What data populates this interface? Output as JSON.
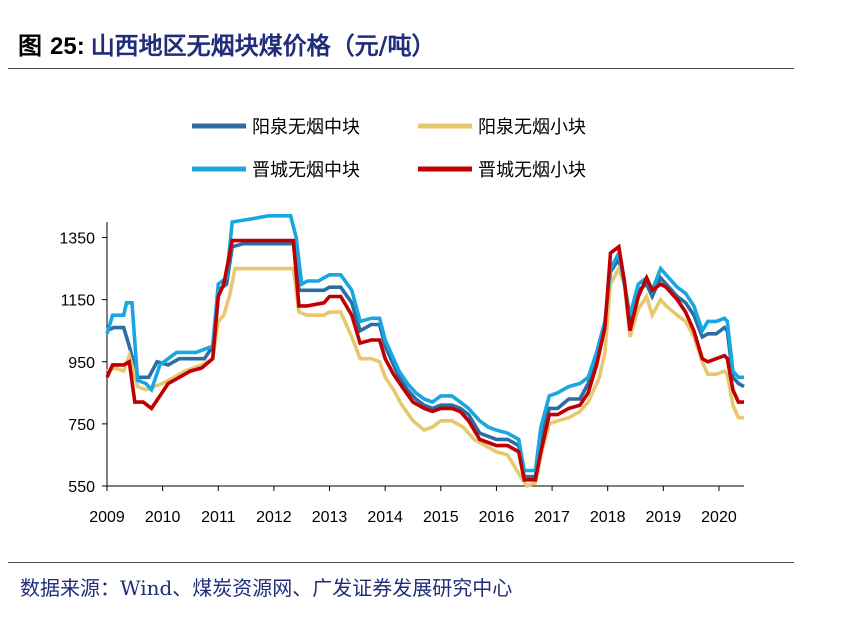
{
  "title": {
    "label": "图",
    "number": "25:",
    "text": "山西地区无烟块煤价格（元/吨）"
  },
  "source": "数据来源：Wind、煤炭资源网、广发证券发展研究中心",
  "chart_data": {
    "type": "line",
    "title": "山西地区无烟块煤价格（元/吨）",
    "xlabel": "",
    "ylabel": "",
    "xlim": [
      2009.0,
      2020.45
    ],
    "ylim": [
      550,
      1400
    ],
    "yticks": [
      550,
      750,
      950,
      1150,
      1350
    ],
    "xticks": [
      "2009",
      "2010",
      "2011",
      "2012",
      "2013",
      "2014",
      "2015",
      "2016",
      "2017",
      "2018",
      "2019",
      "2020"
    ],
    "grid": false,
    "legend_position": "top",
    "series": [
      {
        "name": "阳泉无烟中块",
        "color": "#2e6da4",
        "points": [
          [
            2009.0,
            1050
          ],
          [
            2009.12,
            1060
          ],
          [
            2009.3,
            1060
          ],
          [
            2009.4,
            1000
          ],
          [
            2009.55,
            900
          ],
          [
            2009.75,
            900
          ],
          [
            2009.9,
            950
          ],
          [
            2010.1,
            940
          ],
          [
            2010.3,
            960
          ],
          [
            2010.5,
            960
          ],
          [
            2010.75,
            960
          ],
          [
            2010.9,
            1000
          ],
          [
            2011.0,
            1180
          ],
          [
            2011.15,
            1200
          ],
          [
            2011.25,
            1320
          ],
          [
            2011.45,
            1330
          ],
          [
            2011.75,
            1330
          ],
          [
            2012.0,
            1330
          ],
          [
            2012.35,
            1330
          ],
          [
            2012.45,
            1180
          ],
          [
            2012.6,
            1180
          ],
          [
            2012.9,
            1180
          ],
          [
            2013.0,
            1190
          ],
          [
            2013.2,
            1190
          ],
          [
            2013.4,
            1140
          ],
          [
            2013.55,
            1050
          ],
          [
            2013.75,
            1070
          ],
          [
            2013.9,
            1070
          ],
          [
            2014.0,
            1000
          ],
          [
            2014.1,
            960
          ],
          [
            2014.25,
            900
          ],
          [
            2014.4,
            860
          ],
          [
            2014.55,
            830
          ],
          [
            2014.7,
            810
          ],
          [
            2014.85,
            800
          ],
          [
            2015.0,
            810
          ],
          [
            2015.2,
            810
          ],
          [
            2015.35,
            800
          ],
          [
            2015.5,
            780
          ],
          [
            2015.7,
            720
          ],
          [
            2015.85,
            710
          ],
          [
            2016.0,
            700
          ],
          [
            2016.2,
            700
          ],
          [
            2016.4,
            680
          ],
          [
            2016.5,
            580
          ],
          [
            2016.7,
            580
          ],
          [
            2016.8,
            700
          ],
          [
            2016.95,
            800
          ],
          [
            2017.1,
            800
          ],
          [
            2017.3,
            830
          ],
          [
            2017.5,
            830
          ],
          [
            2017.65,
            880
          ],
          [
            2017.8,
            960
          ],
          [
            2017.95,
            1050
          ],
          [
            2018.05,
            1240
          ],
          [
            2018.2,
            1280
          ],
          [
            2018.3,
            1200
          ],
          [
            2018.4,
            1080
          ],
          [
            2018.55,
            1180
          ],
          [
            2018.7,
            1200
          ],
          [
            2018.8,
            1160
          ],
          [
            2018.95,
            1220
          ],
          [
            2019.05,
            1200
          ],
          [
            2019.25,
            1160
          ],
          [
            2019.4,
            1140
          ],
          [
            2019.55,
            1100
          ],
          [
            2019.7,
            1030
          ],
          [
            2019.8,
            1040
          ],
          [
            2019.95,
            1040
          ],
          [
            2020.1,
            1060
          ],
          [
            2020.15,
            1050
          ],
          [
            2020.25,
            900
          ],
          [
            2020.35,
            880
          ],
          [
            2020.45,
            870
          ]
        ]
      },
      {
        "name": "阳泉无烟小块",
        "color": "#e8c86e",
        "points": [
          [
            2009.0,
            920
          ],
          [
            2009.15,
            930
          ],
          [
            2009.3,
            920
          ],
          [
            2009.4,
            970
          ],
          [
            2009.55,
            870
          ],
          [
            2009.7,
            860
          ],
          [
            2009.85,
            870
          ],
          [
            2010.0,
            880
          ],
          [
            2010.2,
            900
          ],
          [
            2010.4,
            920
          ],
          [
            2010.7,
            940
          ],
          [
            2010.9,
            960
          ],
          [
            2011.0,
            1080
          ],
          [
            2011.1,
            1100
          ],
          [
            2011.2,
            1160
          ],
          [
            2011.3,
            1250
          ],
          [
            2011.6,
            1250
          ],
          [
            2012.0,
            1250
          ],
          [
            2012.35,
            1250
          ],
          [
            2012.45,
            1110
          ],
          [
            2012.6,
            1100
          ],
          [
            2012.9,
            1100
          ],
          [
            2013.0,
            1110
          ],
          [
            2013.2,
            1110
          ],
          [
            2013.4,
            1030
          ],
          [
            2013.55,
            960
          ],
          [
            2013.75,
            960
          ],
          [
            2013.9,
            950
          ],
          [
            2014.0,
            900
          ],
          [
            2014.15,
            860
          ],
          [
            2014.3,
            810
          ],
          [
            2014.5,
            760
          ],
          [
            2014.7,
            730
          ],
          [
            2014.85,
            740
          ],
          [
            2015.0,
            760
          ],
          [
            2015.2,
            760
          ],
          [
            2015.4,
            740
          ],
          [
            2015.6,
            700
          ],
          [
            2015.8,
            680
          ],
          [
            2016.0,
            660
          ],
          [
            2016.2,
            650
          ],
          [
            2016.4,
            590
          ],
          [
            2016.55,
            550
          ],
          [
            2016.7,
            560
          ],
          [
            2016.8,
            650
          ],
          [
            2016.95,
            750
          ],
          [
            2017.1,
            760
          ],
          [
            2017.3,
            770
          ],
          [
            2017.5,
            790
          ],
          [
            2017.65,
            820
          ],
          [
            2017.85,
            900
          ],
          [
            2017.95,
            980
          ],
          [
            2018.05,
            1200
          ],
          [
            2018.2,
            1250
          ],
          [
            2018.3,
            1200
          ],
          [
            2018.4,
            1030
          ],
          [
            2018.55,
            1120
          ],
          [
            2018.7,
            1160
          ],
          [
            2018.8,
            1100
          ],
          [
            2018.95,
            1150
          ],
          [
            2019.05,
            1130
          ],
          [
            2019.25,
            1100
          ],
          [
            2019.4,
            1080
          ],
          [
            2019.55,
            1030
          ],
          [
            2019.7,
            950
          ],
          [
            2019.8,
            910
          ],
          [
            2019.95,
            910
          ],
          [
            2020.1,
            920
          ],
          [
            2020.15,
            910
          ],
          [
            2020.25,
            810
          ],
          [
            2020.35,
            770
          ],
          [
            2020.45,
            770
          ]
        ]
      },
      {
        "name": "晋城无烟中块",
        "color": "#19a7e2",
        "points": [
          [
            2009.0,
            1040
          ],
          [
            2009.1,
            1100
          ],
          [
            2009.3,
            1100
          ],
          [
            2009.35,
            1140
          ],
          [
            2009.45,
            1140
          ],
          [
            2009.55,
            890
          ],
          [
            2009.7,
            880
          ],
          [
            2009.8,
            860
          ],
          [
            2009.95,
            940
          ],
          [
            2010.1,
            960
          ],
          [
            2010.25,
            980
          ],
          [
            2010.45,
            980
          ],
          [
            2010.6,
            980
          ],
          [
            2010.9,
            1000
          ],
          [
            2011.0,
            1200
          ],
          [
            2011.15,
            1220
          ],
          [
            2011.25,
            1400
          ],
          [
            2011.6,
            1410
          ],
          [
            2011.9,
            1420
          ],
          [
            2012.3,
            1420
          ],
          [
            2012.4,
            1350
          ],
          [
            2012.5,
            1200
          ],
          [
            2012.6,
            1210
          ],
          [
            2012.8,
            1210
          ],
          [
            2013.0,
            1230
          ],
          [
            2013.2,
            1230
          ],
          [
            2013.4,
            1180
          ],
          [
            2013.55,
            1080
          ],
          [
            2013.75,
            1090
          ],
          [
            2013.9,
            1090
          ],
          [
            2014.0,
            1020
          ],
          [
            2014.1,
            980
          ],
          [
            2014.25,
            920
          ],
          [
            2014.4,
            880
          ],
          [
            2014.55,
            850
          ],
          [
            2014.7,
            830
          ],
          [
            2014.85,
            820
          ],
          [
            2015.0,
            840
          ],
          [
            2015.2,
            840
          ],
          [
            2015.35,
            820
          ],
          [
            2015.5,
            800
          ],
          [
            2015.7,
            760
          ],
          [
            2015.85,
            740
          ],
          [
            2016.0,
            730
          ],
          [
            2016.2,
            720
          ],
          [
            2016.4,
            700
          ],
          [
            2016.5,
            600
          ],
          [
            2016.7,
            600
          ],
          [
            2016.8,
            740
          ],
          [
            2016.95,
            840
          ],
          [
            2017.1,
            850
          ],
          [
            2017.3,
            870
          ],
          [
            2017.5,
            880
          ],
          [
            2017.65,
            900
          ],
          [
            2017.8,
            980
          ],
          [
            2017.95,
            1080
          ],
          [
            2018.05,
            1250
          ],
          [
            2018.2,
            1300
          ],
          [
            2018.3,
            1200
          ],
          [
            2018.4,
            1100
          ],
          [
            2018.55,
            1200
          ],
          [
            2018.7,
            1220
          ],
          [
            2018.8,
            1180
          ],
          [
            2018.95,
            1250
          ],
          [
            2019.05,
            1230
          ],
          [
            2019.25,
            1190
          ],
          [
            2019.4,
            1170
          ],
          [
            2019.55,
            1130
          ],
          [
            2019.7,
            1050
          ],
          [
            2019.8,
            1080
          ],
          [
            2019.95,
            1080
          ],
          [
            2020.1,
            1090
          ],
          [
            2020.15,
            1080
          ],
          [
            2020.25,
            920
          ],
          [
            2020.35,
            900
          ],
          [
            2020.45,
            900
          ]
        ]
      },
      {
        "name": "晋城无烟小块",
        "color": "#c00000",
        "points": [
          [
            2009.0,
            900
          ],
          [
            2009.1,
            940
          ],
          [
            2009.3,
            940
          ],
          [
            2009.4,
            950
          ],
          [
            2009.5,
            820
          ],
          [
            2009.65,
            820
          ],
          [
            2009.8,
            800
          ],
          [
            2009.95,
            840
          ],
          [
            2010.1,
            880
          ],
          [
            2010.3,
            900
          ],
          [
            2010.5,
            920
          ],
          [
            2010.7,
            930
          ],
          [
            2010.9,
            960
          ],
          [
            2011.0,
            1160
          ],
          [
            2011.1,
            1200
          ],
          [
            2011.25,
            1340
          ],
          [
            2011.6,
            1340
          ],
          [
            2012.0,
            1340
          ],
          [
            2012.35,
            1340
          ],
          [
            2012.45,
            1130
          ],
          [
            2012.6,
            1130
          ],
          [
            2012.9,
            1140
          ],
          [
            2013.0,
            1160
          ],
          [
            2013.2,
            1160
          ],
          [
            2013.4,
            1100
          ],
          [
            2013.55,
            1010
          ],
          [
            2013.75,
            1020
          ],
          [
            2013.9,
            1020
          ],
          [
            2014.0,
            960
          ],
          [
            2014.15,
            910
          ],
          [
            2014.3,
            870
          ],
          [
            2014.5,
            820
          ],
          [
            2014.7,
            800
          ],
          [
            2014.85,
            790
          ],
          [
            2015.0,
            800
          ],
          [
            2015.2,
            800
          ],
          [
            2015.35,
            790
          ],
          [
            2015.5,
            760
          ],
          [
            2015.7,
            700
          ],
          [
            2015.85,
            690
          ],
          [
            2016.0,
            680
          ],
          [
            2016.2,
            680
          ],
          [
            2016.4,
            660
          ],
          [
            2016.5,
            570
          ],
          [
            2016.7,
            570
          ],
          [
            2016.8,
            660
          ],
          [
            2016.95,
            780
          ],
          [
            2017.1,
            780
          ],
          [
            2017.3,
            800
          ],
          [
            2017.5,
            810
          ],
          [
            2017.65,
            850
          ],
          [
            2017.8,
            940
          ],
          [
            2017.95,
            1060
          ],
          [
            2018.05,
            1300
          ],
          [
            2018.2,
            1320
          ],
          [
            2018.3,
            1210
          ],
          [
            2018.4,
            1050
          ],
          [
            2018.55,
            1160
          ],
          [
            2018.7,
            1220
          ],
          [
            2018.8,
            1180
          ],
          [
            2018.95,
            1200
          ],
          [
            2019.05,
            1190
          ],
          [
            2019.25,
            1150
          ],
          [
            2019.4,
            1110
          ],
          [
            2019.55,
            1050
          ],
          [
            2019.7,
            960
          ],
          [
            2019.8,
            950
          ],
          [
            2019.95,
            960
          ],
          [
            2020.1,
            970
          ],
          [
            2020.15,
            960
          ],
          [
            2020.25,
            860
          ],
          [
            2020.35,
            820
          ],
          [
            2020.45,
            820
          ]
        ]
      }
    ]
  }
}
